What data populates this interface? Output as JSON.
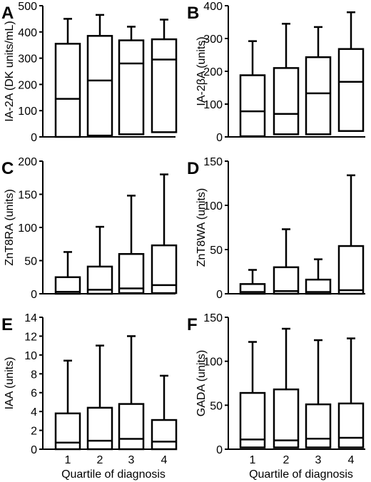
{
  "figure": {
    "x_axis_title": "Quartile of diagnosis",
    "panel_labels": [
      "A",
      "B",
      "C",
      "D",
      "E",
      "F"
    ]
  },
  "chart_data": [
    {
      "type": "box",
      "panel": "A",
      "categories": [
        "1",
        "2",
        "3",
        "4"
      ],
      "ylabel": "IA-2A (DK units/mL)",
      "ylim": [
        0,
        500
      ],
      "yticks": [
        0,
        100,
        200,
        300,
        400,
        500
      ],
      "boxes": [
        {
          "min": 0,
          "q1": 0,
          "median": 145,
          "q3": 355,
          "max": 450
        },
        {
          "min": 0,
          "q1": 5,
          "median": 215,
          "q3": 385,
          "max": 465
        },
        {
          "min": 0,
          "q1": 10,
          "median": 280,
          "q3": 368,
          "max": 420
        },
        {
          "min": 0,
          "q1": 18,
          "median": 295,
          "q3": 372,
          "max": 447
        }
      ]
    },
    {
      "type": "box",
      "panel": "B",
      "categories": [
        "1",
        "2",
        "3",
        "4"
      ],
      "ylabel": "IA-2βA (units)",
      "ylim": [
        0,
        400
      ],
      "yticks": [
        0,
        100,
        200,
        300,
        400
      ],
      "boxes": [
        {
          "min": 0,
          "q1": 2,
          "median": 78,
          "q3": 188,
          "max": 292
        },
        {
          "min": 0,
          "q1": 8,
          "median": 70,
          "q3": 210,
          "max": 345
        },
        {
          "min": 0,
          "q1": 8,
          "median": 133,
          "q3": 243,
          "max": 335
        },
        {
          "min": 0,
          "q1": 18,
          "median": 168,
          "q3": 268,
          "max": 380
        }
      ]
    },
    {
      "type": "box",
      "panel": "C",
      "categories": [
        "1",
        "2",
        "3",
        "4"
      ],
      "ylabel": "ZnT8RA (units)",
      "ylim": [
        0,
        200
      ],
      "yticks": [
        0,
        50,
        100,
        150,
        200
      ],
      "boxes": [
        {
          "min": 0,
          "q1": 0,
          "median": 3,
          "q3": 25,
          "max": 63
        },
        {
          "min": 0,
          "q1": 0,
          "median": 6,
          "q3": 41,
          "max": 101
        },
        {
          "min": 0,
          "q1": 1,
          "median": 8,
          "q3": 60,
          "max": 148
        },
        {
          "min": 0,
          "q1": 1,
          "median": 13,
          "q3": 73,
          "max": 180
        }
      ]
    },
    {
      "type": "box",
      "panel": "D",
      "categories": [
        "1",
        "2",
        "3",
        "4"
      ],
      "ylabel": "ZnT8WA (units)",
      "ylim": [
        0,
        150
      ],
      "yticks": [
        0,
        50,
        100,
        150
      ],
      "boxes": [
        {
          "min": 0,
          "q1": 0,
          "median": 2,
          "q3": 11,
          "max": 27
        },
        {
          "min": 0,
          "q1": 0,
          "median": 3,
          "q3": 30,
          "max": 73
        },
        {
          "min": 0,
          "q1": 0,
          "median": 2,
          "q3": 16,
          "max": 39
        },
        {
          "min": 0,
          "q1": 0,
          "median": 4,
          "q3": 54,
          "max": 134
        }
      ]
    },
    {
      "type": "box",
      "panel": "E",
      "categories": [
        "1",
        "2",
        "3",
        "4"
      ],
      "ylabel": "IAA (units)",
      "ylim": [
        0,
        14
      ],
      "yticks": [
        0,
        2,
        4,
        6,
        8,
        10,
        12,
        14
      ],
      "boxes": [
        {
          "min": 0,
          "q1": 0,
          "median": 0.7,
          "q3": 3.8,
          "max": 9.4
        },
        {
          "min": 0,
          "q1": 0,
          "median": 0.9,
          "q3": 4.4,
          "max": 11.0
        },
        {
          "min": 0,
          "q1": 0,
          "median": 1.1,
          "q3": 4.8,
          "max": 12.0
        },
        {
          "min": 0,
          "q1": 0,
          "median": 0.8,
          "q3": 3.1,
          "max": 7.8
        }
      ]
    },
    {
      "type": "box",
      "panel": "F",
      "categories": [
        "1",
        "2",
        "3",
        "4"
      ],
      "ylabel": "GADA (units)",
      "ylim": [
        0,
        150
      ],
      "yticks": [
        0,
        50,
        100,
        150
      ],
      "boxes": [
        {
          "min": 0,
          "q1": 2,
          "median": 11,
          "q3": 64,
          "max": 122
        },
        {
          "min": 0,
          "q1": 2,
          "median": 10,
          "q3": 68,
          "max": 137
        },
        {
          "min": 0,
          "q1": 2,
          "median": 12,
          "q3": 51,
          "max": 124
        },
        {
          "min": 0,
          "q1": 2,
          "median": 13,
          "q3": 52,
          "max": 126
        }
      ]
    }
  ]
}
